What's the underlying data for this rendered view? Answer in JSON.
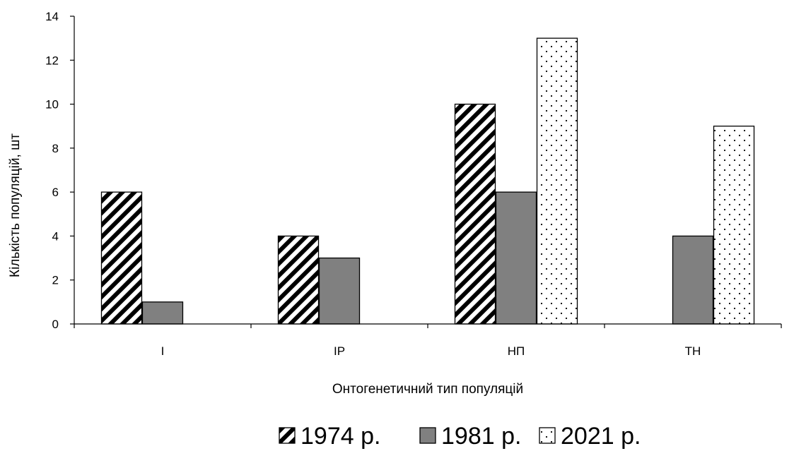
{
  "chart_data": {
    "type": "bar",
    "title": "",
    "xlabel": "Онтогенетичний тип популяцій",
    "ylabel": "Кількість популяцій, шт",
    "categories": [
      "I",
      "IP",
      "НП",
      "ТН"
    ],
    "ylim": [
      0,
      14
    ],
    "yticks": [
      0,
      2,
      4,
      6,
      8,
      10,
      12,
      14
    ],
    "grid": false,
    "legend_position": "bottom",
    "series": [
      {
        "name": "1974 р.",
        "values": [
          6,
          4,
          10,
          null
        ],
        "pattern": "diagonal-hatch",
        "color": "#000000"
      },
      {
        "name": "1981 р.",
        "values": [
          1,
          3,
          6,
          4
        ],
        "pattern": "solid",
        "color": "#808080"
      },
      {
        "name": "2021 р.",
        "values": [
          null,
          null,
          13,
          9
        ],
        "pattern": "dotted",
        "color": "#ffffff"
      }
    ]
  }
}
